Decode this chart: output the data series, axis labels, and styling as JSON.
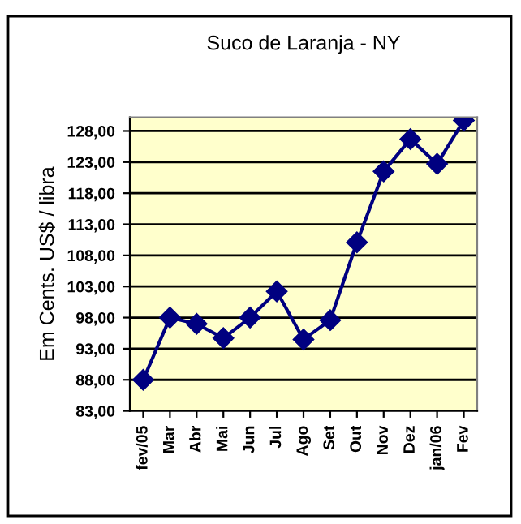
{
  "chart_data": {
    "type": "line",
    "title": "Suco de Laranja - NY",
    "ylabel": "Em Cents. US$ / libra",
    "categories": [
      "fev/05",
      "Mar",
      "Abr",
      "Mai",
      "Jun",
      "Jul",
      "Ago",
      "Set",
      "Out",
      "Nov",
      "Dez",
      "jan/06",
      "Fev"
    ],
    "series": [
      {
        "color": "#000080",
        "values": [
          88.0,
          98.0,
          97.0,
          94.7,
          98.0,
          102.2,
          94.5,
          97.6,
          110.1,
          121.5,
          126.7,
          122.7,
          129.7
        ]
      }
    ],
    "ylim": [
      83,
      130.2
    ],
    "yticks": [
      {
        "value": 83,
        "label": "83,00"
      },
      {
        "value": 88,
        "label": "88,00"
      },
      {
        "value": 93,
        "label": "93,00"
      },
      {
        "value": 98,
        "label": "98,00"
      },
      {
        "value": 103,
        "label": "103,00"
      },
      {
        "value": 108,
        "label": "108,00"
      },
      {
        "value": 113,
        "label": "113,00"
      },
      {
        "value": 118,
        "label": "118,00"
      },
      {
        "value": 123,
        "label": "123,00"
      },
      {
        "value": 128,
        "label": "128,00"
      }
    ],
    "grid": "y",
    "marker": "diamond",
    "line_style": "solid",
    "legend": false
  }
}
